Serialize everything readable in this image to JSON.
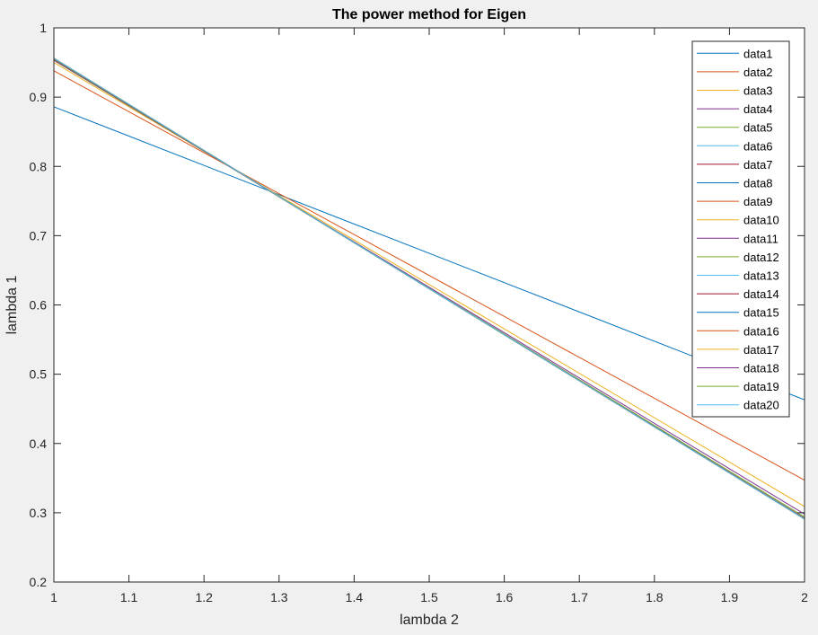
{
  "chart_data": {
    "type": "line",
    "title": "The power method for Eigen",
    "xlabel": "lambda 2",
    "ylabel": "lambda 1",
    "xlim": [
      1,
      2
    ],
    "ylim": [
      0.2,
      1
    ],
    "xticks": [
      "1",
      "1.1",
      "1.2",
      "1.3",
      "1.4",
      "1.5",
      "1.6",
      "1.7",
      "1.8",
      "1.9",
      "2"
    ],
    "yticks": [
      "0.2",
      "0.3",
      "0.4",
      "0.5",
      "0.6",
      "0.7",
      "0.8",
      "0.9",
      "1"
    ],
    "grid": false,
    "legend_position": "top-right",
    "series": [
      {
        "name": "data1",
        "color": "#0072BD",
        "x": [
          1,
          2
        ],
        "y": [
          0.886,
          0.463
        ]
      },
      {
        "name": "data2",
        "color": "#D95319",
        "x": [
          1,
          2
        ],
        "y": [
          0.938,
          0.347
        ]
      },
      {
        "name": "data3",
        "color": "#EDB120",
        "x": [
          1,
          2
        ],
        "y": [
          0.95,
          0.309
        ]
      },
      {
        "name": "data4",
        "color": "#7E2F8E",
        "x": [
          1,
          2
        ],
        "y": [
          0.953,
          0.298
        ]
      },
      {
        "name": "data5",
        "color": "#77AC30",
        "x": [
          1,
          2
        ],
        "y": [
          0.954,
          0.294
        ]
      },
      {
        "name": "data6",
        "color": "#4DBEEE",
        "x": [
          1,
          2
        ],
        "y": [
          0.955,
          0.292
        ]
      },
      {
        "name": "data7",
        "color": "#A2142F",
        "x": [
          1,
          2
        ],
        "y": [
          0.955,
          0.292
        ]
      },
      {
        "name": "data8",
        "color": "#0072BD",
        "x": [
          1,
          2
        ],
        "y": [
          0.956,
          0.291
        ]
      },
      {
        "name": "data9",
        "color": "#D95319",
        "x": [
          1,
          2
        ],
        "y": [
          0.956,
          0.291
        ]
      },
      {
        "name": "data10",
        "color": "#EDB120",
        "x": [
          1,
          2
        ],
        "y": [
          0.956,
          0.291
        ]
      },
      {
        "name": "data11",
        "color": "#7E2F8E",
        "x": [
          1,
          2
        ],
        "y": [
          0.956,
          0.291
        ]
      },
      {
        "name": "data12",
        "color": "#77AC30",
        "x": [
          1,
          2
        ],
        "y": [
          0.956,
          0.291
        ]
      },
      {
        "name": "data13",
        "color": "#4DBEEE",
        "x": [
          1,
          2
        ],
        "y": [
          0.956,
          0.291
        ]
      },
      {
        "name": "data14",
        "color": "#A2142F",
        "x": [
          1,
          2
        ],
        "y": [
          0.956,
          0.291
        ]
      },
      {
        "name": "data15",
        "color": "#0072BD",
        "x": [
          1,
          2
        ],
        "y": [
          0.956,
          0.291
        ]
      },
      {
        "name": "data16",
        "color": "#D95319",
        "x": [
          1,
          2
        ],
        "y": [
          0.956,
          0.291
        ]
      },
      {
        "name": "data17",
        "color": "#EDB120",
        "x": [
          1,
          2
        ],
        "y": [
          0.956,
          0.291
        ]
      },
      {
        "name": "data18",
        "color": "#7E2F8E",
        "x": [
          1,
          2
        ],
        "y": [
          0.956,
          0.291
        ]
      },
      {
        "name": "data19",
        "color": "#77AC30",
        "x": [
          1,
          2
        ],
        "y": [
          0.956,
          0.291
        ]
      },
      {
        "name": "data20",
        "color": "#4DBEEE",
        "x": [
          1,
          2
        ],
        "y": [
          0.956,
          0.291
        ]
      }
    ]
  }
}
